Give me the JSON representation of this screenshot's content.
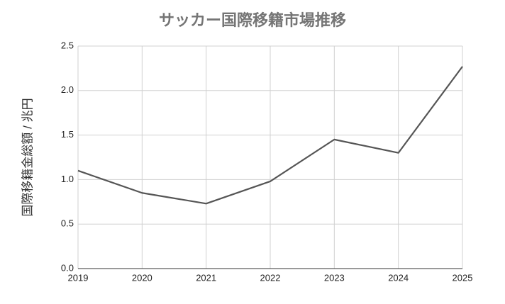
{
  "chart_data": {
    "type": "line",
    "title": "サッカー国際移籍市場推移",
    "y_label": "国際移籍金総額 / 兆円",
    "x": [
      2019,
      2020,
      2021,
      2022,
      2023,
      2024,
      2025
    ],
    "series": [
      {
        "name": "国際移籍金総額",
        "color": "#555555",
        "values": [
          1.1,
          0.85,
          0.73,
          0.98,
          1.45,
          1.3,
          2.27
        ]
      }
    ],
    "xlim": [
      2019,
      2025
    ],
    "xticks": [
      2019,
      2020,
      2021,
      2022,
      2023,
      2024,
      2025
    ],
    "ylim": [
      0,
      2.5
    ],
    "yticks": [
      {
        "value": 0,
        "label": "0.0"
      },
      0.5,
      {
        "value": 1,
        "label": "1.0"
      },
      1.5,
      {
        "value": 2,
        "label": "2.0"
      },
      2.5
    ],
    "grid": true
  }
}
